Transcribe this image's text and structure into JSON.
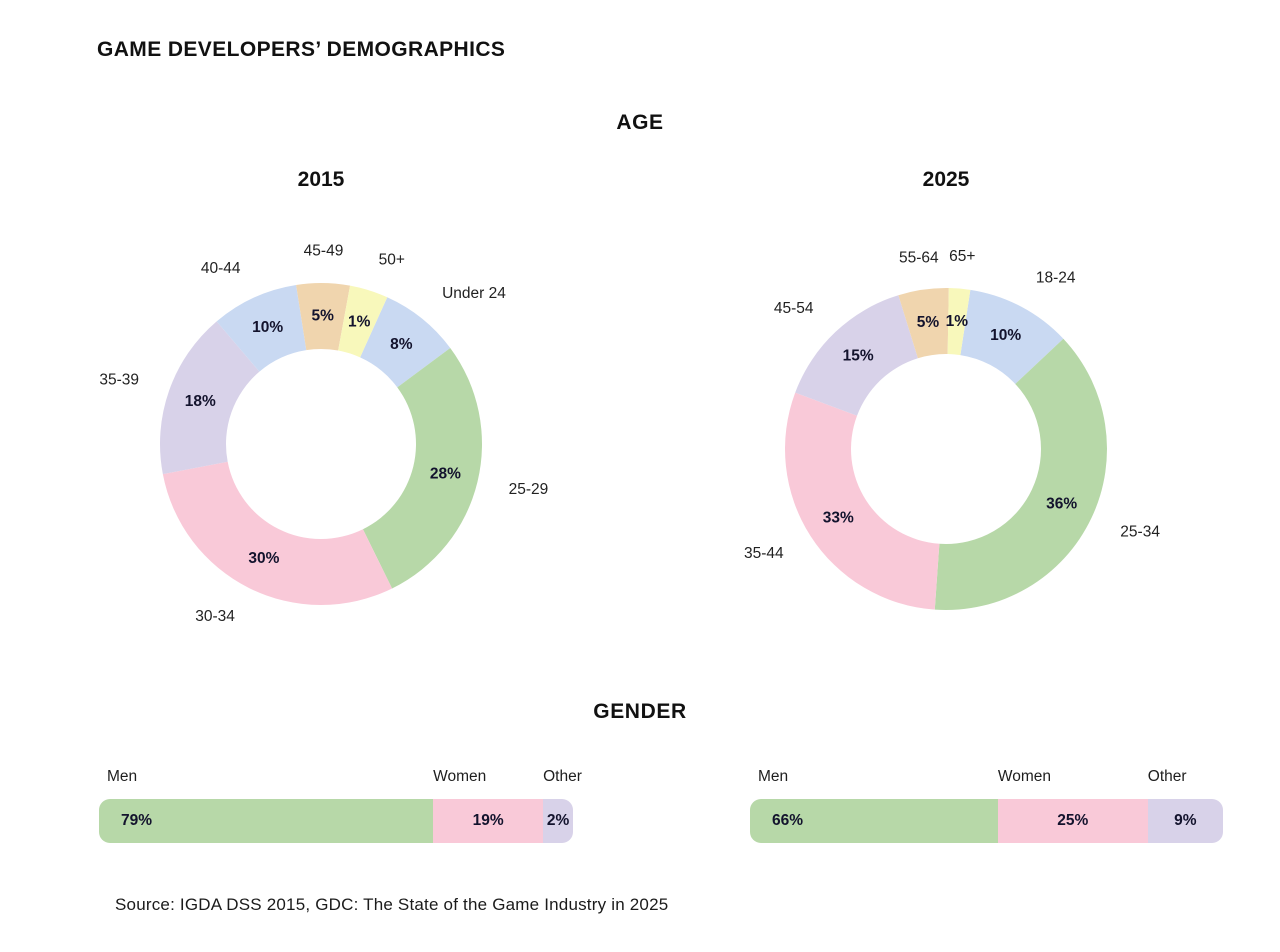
{
  "page": {
    "title": "GAME DEVELOPERS’ DEMOGRAPHICS",
    "section_age": "AGE",
    "section_gender": "GENDER",
    "source": "Source: IGDA DSS 2015, GDC: The State of the Game Industry in 2025"
  },
  "colors": {
    "green": "#b7d8a8",
    "pink": "#f9c9d8",
    "lavender": "#d8d2e9",
    "blue": "#c9d9f2",
    "tan": "#f0d5ae",
    "yellow": "#f8f8bb",
    "percent_label": "#13132d",
    "category_label": "#222222",
    "heading": "#111111"
  },
  "chart_data": [
    {
      "type": "pie",
      "subtype": "donut",
      "group": "AGE",
      "title": "2015",
      "legend_position": "outside-radial",
      "start_deg": 24.3,
      "segments": [
        {
          "label": "Under 24",
          "value": 8,
          "display": "8%",
          "color": "blue",
          "sweep_deg": 29.1
        },
        {
          "label": "25-29",
          "value": 28,
          "display": "28%",
          "color": "green",
          "sweep_deg": 100.4
        },
        {
          "label": "30-34",
          "value": 30,
          "display": "30%",
          "color": "pink",
          "sweep_deg": 105.4
        },
        {
          "label": "35-39",
          "value": 18,
          "display": "18%",
          "color": "lavender",
          "sweep_deg": 60.4
        },
        {
          "label": "40-44",
          "value": 10,
          "display": "10%",
          "color": "blue",
          "sweep_deg": 31.5
        },
        {
          "label": "45-49",
          "value": 5,
          "display": "5%",
          "color": "tan",
          "sweep_deg": 19.3
        },
        {
          "label": "50+",
          "value": 1,
          "display": "1%",
          "color": "yellow",
          "sweep_deg": 13.9
        }
      ]
    },
    {
      "type": "pie",
      "subtype": "donut",
      "group": "AGE",
      "title": "2025",
      "legend_position": "outside-radial",
      "start_deg": 8.7,
      "segments": [
        {
          "label": "18-24",
          "value": 10,
          "display": "10%",
          "color": "blue",
          "sweep_deg": 38.1
        },
        {
          "label": "25-34",
          "value": 36,
          "display": "36%",
          "color": "green",
          "sweep_deg": 137.2
        },
        {
          "label": "35-44",
          "value": 33,
          "display": "33%",
          "color": "pink",
          "sweep_deg": 106.5
        },
        {
          "label": "45-54",
          "value": 15,
          "display": "15%",
          "color": "lavender",
          "sweep_deg": 52.3
        },
        {
          "label": "55-64",
          "value": 5,
          "display": "5%",
          "color": "tan",
          "sweep_deg": 18.2
        },
        {
          "label": "65+",
          "value": 1,
          "display": "1%",
          "color": "yellow",
          "sweep_deg": 7.7
        }
      ]
    },
    {
      "type": "bar",
      "subtype": "stacked-horizontal",
      "group": "GENDER",
      "title": "2015",
      "segments": [
        {
          "label": "Men",
          "value": 79,
          "display": "79%",
          "color": "green",
          "width_pct": 70.5
        },
        {
          "label": "Women",
          "value": 19,
          "display": "19%",
          "color": "pink",
          "width_pct": 23.2
        },
        {
          "label": "Other",
          "value": 2,
          "display": "2%",
          "color": "lavender",
          "width_pct": 6.3
        }
      ]
    },
    {
      "type": "bar",
      "subtype": "stacked-horizontal",
      "group": "GENDER",
      "title": "2025",
      "segments": [
        {
          "label": "Men",
          "value": 66,
          "display": "66%",
          "color": "green",
          "width_pct": 52.4
        },
        {
          "label": "Women",
          "value": 25,
          "display": "25%",
          "color": "pink",
          "width_pct": 31.7
        },
        {
          "label": "Other",
          "value": 9,
          "display": "9%",
          "color": "lavender",
          "width_pct": 15.9
        }
      ]
    }
  ]
}
